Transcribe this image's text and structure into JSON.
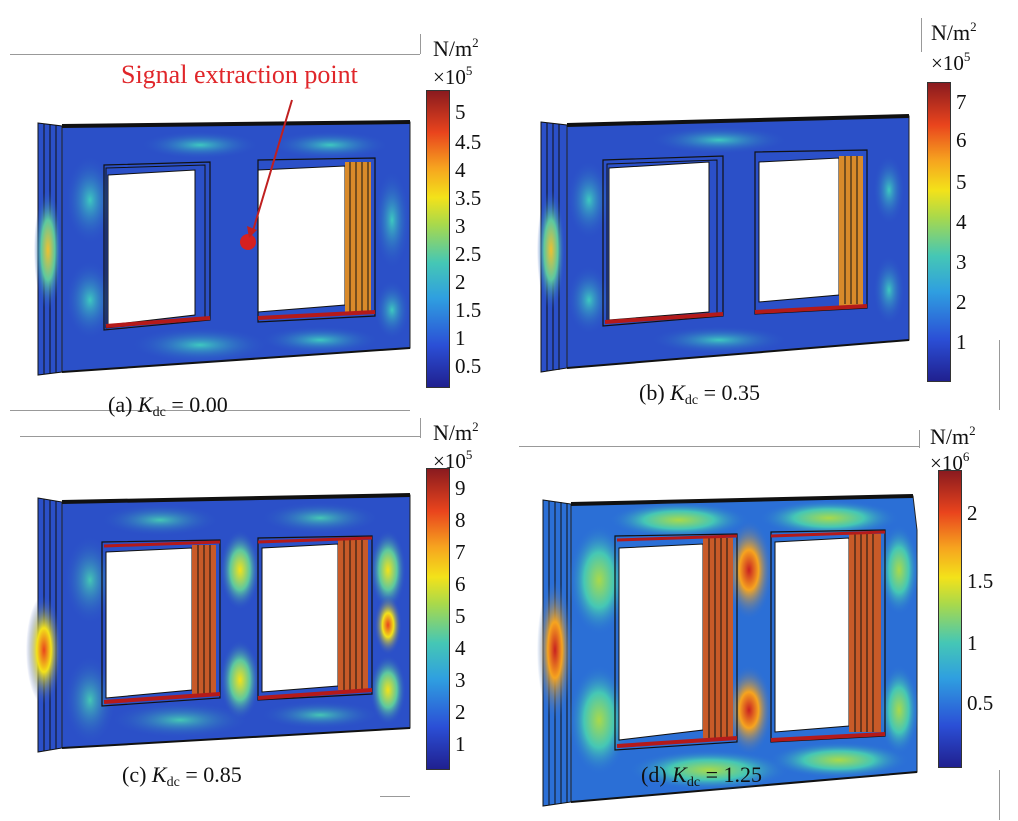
{
  "panels": [
    {
      "id": "a",
      "caption_prefix": "(a)",
      "caption_var": "K",
      "caption_sub": "dc",
      "caption_value": "= 0.00",
      "unit": "N/m",
      "unit_exp": "2",
      "multiplier": "×10",
      "multiplier_exp": "5",
      "ticks": [
        "5",
        "4.5",
        "4",
        "3.5",
        "3",
        "2.5",
        "2",
        "1.5",
        "1",
        "0.5"
      ],
      "annotation": "Signal extraction point"
    },
    {
      "id": "b",
      "caption_prefix": "(b)",
      "caption_var": "K",
      "caption_sub": "dc",
      "caption_value": "= 0.35",
      "unit": "N/m",
      "unit_exp": "2",
      "multiplier": "×10",
      "multiplier_exp": "5",
      "ticks": [
        "7",
        "6",
        "5",
        "4",
        "3",
        "2",
        "1"
      ]
    },
    {
      "id": "c",
      "caption_prefix": "(c)",
      "caption_var": "K",
      "caption_sub": "dc",
      "caption_value": "= 0.85",
      "unit": "N/m",
      "unit_exp": "2",
      "multiplier": "×10",
      "multiplier_exp": "5",
      "ticks": [
        "9",
        "8",
        "7",
        "6",
        "5",
        "4",
        "3",
        "2",
        "1"
      ]
    },
    {
      "id": "d",
      "caption_prefix": "(d)",
      "caption_var": "K",
      "caption_sub": "dc",
      "caption_value": "= 1.25",
      "unit": "N/m",
      "unit_exp": "2",
      "multiplier": "×10",
      "multiplier_exp": "6",
      "ticks": [
        "2",
        "1.5",
        "1",
        "0.5"
      ]
    }
  ],
  "colors": {
    "core_blue": "#2b50c8",
    "hot_red": "#b41a1a",
    "annotation_red": "#e0262a"
  }
}
